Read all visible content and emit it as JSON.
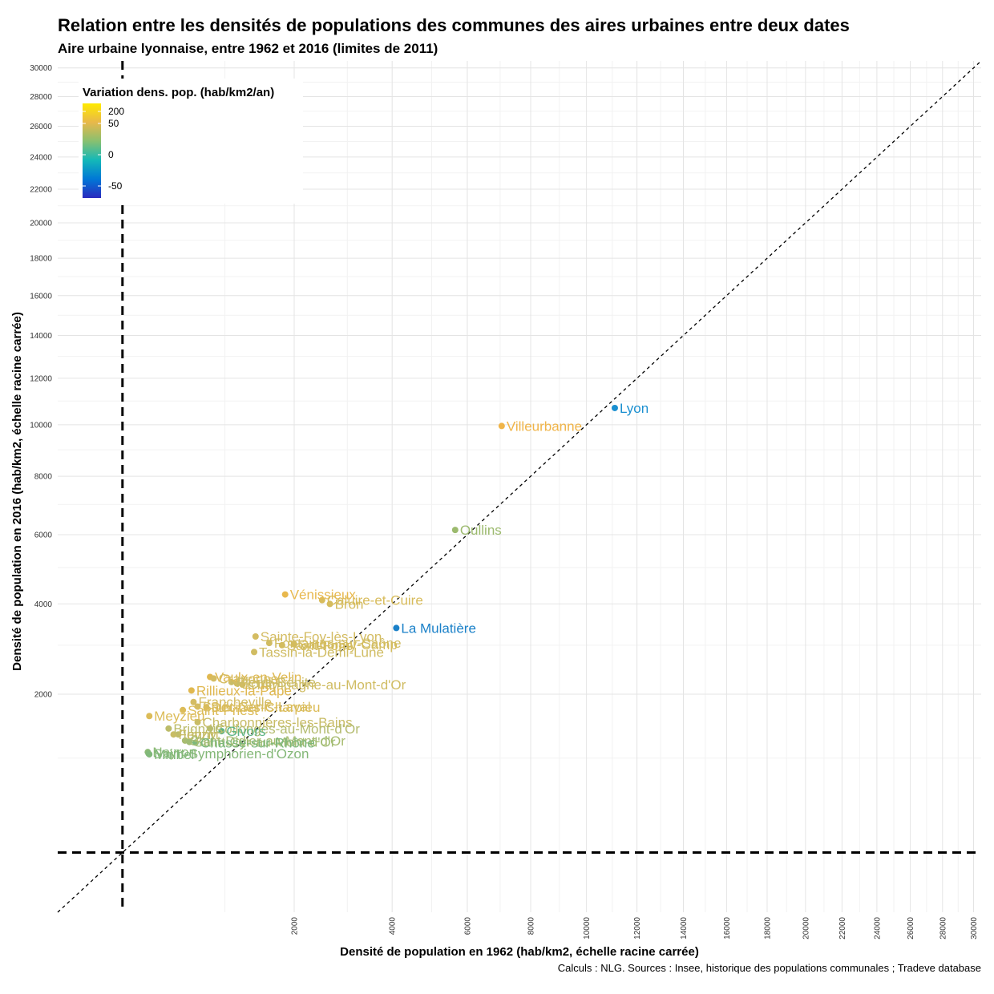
{
  "chart_data": {
    "type": "scatter",
    "title": "Relation entre les densités de populations des communes des aires urbaines entre deux dates",
    "subtitle": "Aire urbaine lyonnaise, entre 1962 et 2016 (limites de 2011)",
    "xlabel": "Densité de population en 1962 (hab/km2, échelle racine carrée)",
    "ylabel": "Densité de population en 2016 (hab/km2, échelle racine carrée)",
    "caption": "Calculs : NLG. Sources : Insee, historique des populations communales ; Tradeve database",
    "scale": "sqrt",
    "xlim": [
      0,
      30500
    ],
    "ylim": [
      0,
      30500
    ],
    "x_ticks": [
      2000,
      4000,
      6000,
      8000,
      10000,
      12000,
      14000,
      16000,
      18000,
      20000,
      22000,
      24000,
      26000,
      28000,
      30000
    ],
    "y_ticks": [
      2000,
      4000,
      6000,
      8000,
      10000,
      12000,
      14000,
      16000,
      18000,
      20000,
      22000,
      24000,
      26000,
      28000,
      30000
    ],
    "threshold_x": 150,
    "threshold_y": 150,
    "diagonal": "y = x",
    "legend": {
      "title": "Variation dens. pop. (hab/km2/an)",
      "position": "top-left",
      "ticks": [
        "200",
        "50",
        "0",
        "-50"
      ],
      "colors": [
        "#2a2abf",
        "#0077d6",
        "#14b8b8",
        "#88c070",
        "#e8b84a",
        "#ffea00"
      ]
    },
    "points": [
      {
        "name": "Lyon",
        "x": 11100,
        "y": 10700,
        "color": "#1a8fd0"
      },
      {
        "name": "Villeurbanne",
        "x": 7050,
        "y": 9950,
        "color": "#f0b448"
      },
      {
        "name": "Oullins",
        "x": 5650,
        "y": 6150,
        "color": "#9cba6e"
      },
      {
        "name": "Vénissieux",
        "x": 1850,
        "y": 4250,
        "color": "#e8b84e"
      },
      {
        "name": "Caluire-et-Cuire",
        "x": 2500,
        "y": 4100,
        "color": "#d8bc5c"
      },
      {
        "name": "Bron",
        "x": 2650,
        "y": 4000,
        "color": "#d4bc5e"
      },
      {
        "name": "La Mulatière",
        "x": 4100,
        "y": 3400,
        "color": "#1a80c8"
      },
      {
        "name": "Sainte-Foy-lès-Lyon",
        "x": 1400,
        "y": 3200,
        "color": "#d4bc62"
      },
      {
        "name": "Fontaines-sur-Saône",
        "x": 1600,
        "y": 3050,
        "color": "#d0bc62"
      },
      {
        "name": "Saint-Fons",
        "x": 1800,
        "y": 3000,
        "color": "#d4bc5e"
      },
      {
        "name": "Sathonay-Camp",
        "x": 2000,
        "y": 3020,
        "color": "#d4bc5c"
      },
      {
        "name": "Tassin-la-Demi-Lune",
        "x": 1380,
        "y": 2850,
        "color": "#d0bc62"
      },
      {
        "name": "Vaulx-en-Velin",
        "x": 830,
        "y": 2330,
        "color": "#e0b850"
      },
      {
        "name": "Craponne",
        "x": 870,
        "y": 2300,
        "color": "#d4bc62"
      },
      {
        "name": "Pierre-Bénite",
        "x": 1080,
        "y": 2230,
        "color": "#c8bc66"
      },
      {
        "name": "Écully",
        "x": 1150,
        "y": 2200,
        "color": "#d0bc60"
      },
      {
        "name": "Champagne-au-Mont-d'Or",
        "x": 1220,
        "y": 2180,
        "color": "#d0bc62"
      },
      {
        "name": "Rillieux-la-Pape",
        "x": 640,
        "y": 2070,
        "color": "#e0b850"
      },
      {
        "name": "Francheville",
        "x": 660,
        "y": 1860,
        "color": "#d4bc62"
      },
      {
        "name": "Saint-Genis-Laval",
        "x": 700,
        "y": 1780,
        "color": "#d4bc62"
      },
      {
        "name": "Décines-Charpieu",
        "x": 790,
        "y": 1770,
        "color": "#dcbc58"
      },
      {
        "name": "Saint-Priest",
        "x": 560,
        "y": 1720,
        "color": "#dcbc58"
      },
      {
        "name": "Meyzieu",
        "x": 300,
        "y": 1620,
        "color": "#dcbc58"
      },
      {
        "name": "Charbonnières-les-Bains",
        "x": 700,
        "y": 1520,
        "color": "#c8bc66"
      },
      {
        "name": "Brignais",
        "x": 440,
        "y": 1420,
        "color": "#bcbc6a"
      },
      {
        "name": "Collonges-au-Mont-d'Or",
        "x": 830,
        "y": 1420,
        "color": "#b4bc70"
      },
      {
        "name": "Givors",
        "x": 960,
        "y": 1380,
        "color": "#5cb484"
      },
      {
        "name": "Irigny",
        "x": 520,
        "y": 1330,
        "color": "#c0bc68"
      },
      {
        "name": "Feyzin",
        "x": 480,
        "y": 1330,
        "color": "#c8bc64"
      },
      {
        "name": "Saint-Didier-au-Mont-d'Or",
        "x": 580,
        "y": 1240,
        "color": "#a8bc70"
      },
      {
        "name": "Saint-Cyr-au-Mont-d'Or",
        "x": 620,
        "y": 1220,
        "color": "#a0bc74"
      },
      {
        "name": "Chasse-sur-Rhône",
        "x": 680,
        "y": 1210,
        "color": "#7cb87c"
      },
      {
        "name": "Neyron",
        "x": 290,
        "y": 1080,
        "color": "#8cba76"
      },
      {
        "name": "Saint-Symphorien-d'Ozon",
        "x": 295,
        "y": 1060,
        "color": "#84b878"
      },
      {
        "name": "Miribel",
        "x": 300,
        "y": 1050,
        "color": "#80b87a"
      }
    ]
  }
}
